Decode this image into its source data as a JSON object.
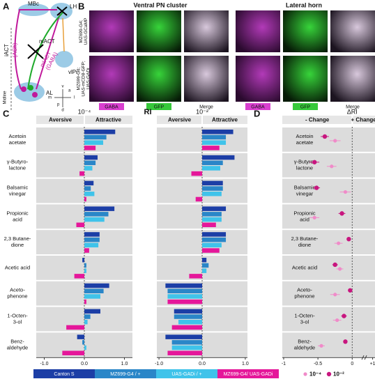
{
  "figure": {
    "panel_labels": [
      "A",
      "B",
      "C",
      "D"
    ],
    "diagram": {
      "mbc": "MBc",
      "lh": "LH",
      "iact": "iACT",
      "iact_nt": "(ACh)",
      "mact": "mACT",
      "mlact": "mlACT",
      "mlact_nt": "(GABA)",
      "vlpr": "vlPr",
      "al": "AL",
      "midline": "Midline",
      "axes": [
        "v",
        "a",
        "l",
        "m",
        "p",
        "d"
      ]
    },
    "imaging": {
      "titles": [
        "Ventral PN cluster",
        "Lateral horn"
      ],
      "rows": [
        [
          "MZ699-G4;",
          "UAS-GCaMP"
        ],
        [
          "MZ699-G4;",
          "UAS-mCD8-GFP;",
          "UAS-GADi"
        ]
      ],
      "channels": [
        "GABA",
        "GFP",
        "Merge"
      ]
    }
  },
  "chart_data": [
    {
      "type": "hbar",
      "title": "10⁻⁴",
      "left_label": "Aversive",
      "right_label": "Attractive",
      "categories": [
        [
          "Acetoin",
          "acetate"
        ],
        [
          "γ-Butyro-",
          "lactone"
        ],
        [
          "Balsamic",
          "vinegar"
        ],
        [
          "Propionic",
          "acid"
        ],
        [
          "2,3 Butane-",
          "dione"
        ],
        [
          "Acetic acid"
        ],
        [
          "Aceto-",
          "phenone"
        ],
        [
          "1-Octen-",
          "3-ol"
        ],
        [
          "Benz-",
          "aldehyde"
        ]
      ],
      "series": [
        {
          "name": "Canton S",
          "color": "#1c3ea6",
          "values": [
            0.77,
            0.33,
            0.23,
            0.75,
            0.38,
            -0.05,
            0.62,
            0.4,
            -0.18
          ]
        },
        {
          "name": "MZ699-G4 / +",
          "color": "#2a86c8",
          "values": [
            0.55,
            0.28,
            0.16,
            0.6,
            0.38,
            0.05,
            0.48,
            0.15,
            -0.05
          ]
        },
        {
          "name": "UAS-GADi / +",
          "color": "#3fc3ea",
          "values": [
            0.47,
            0.2,
            0.25,
            0.5,
            0.35,
            0.05,
            0.4,
            0.08,
            0.05
          ]
        },
        {
          "name": "MZ699-G4/ UAS-GADi",
          "color": "#e5179a",
          "values": [
            0.28,
            -0.12,
            0.05,
            -0.2,
            0.12,
            -0.25,
            0.05,
            -0.45,
            -0.55
          ]
        }
      ],
      "xlim": [
        -1.2,
        1.2
      ],
      "xticks": [
        {
          "value": -1,
          "label": "-1.0"
        },
        {
          "value": 0,
          "label": "0.0"
        },
        {
          "value": 1,
          "label": "1.0"
        }
      ]
    },
    {
      "type": "hbar",
      "title": "10⁻²",
      "ylabel": "RI",
      "left_label": "Aversive",
      "right_label": "Attractive",
      "series": [
        {
          "name": "Canton S",
          "color": "#1c3ea6",
          "values": [
            0.72,
            0.75,
            0.48,
            0.55,
            0.55,
            0.1,
            -0.85,
            -0.65,
            -0.85
          ]
        },
        {
          "name": "MZ699-G4 / +",
          "color": "#2a86c8",
          "values": [
            0.55,
            0.48,
            0.48,
            0.45,
            0.55,
            0.15,
            -0.8,
            -0.65,
            -0.7
          ]
        },
        {
          "name": "UAS-GADi / +",
          "color": "#3fc3ea",
          "values": [
            0.55,
            0.42,
            0.45,
            0.45,
            0.45,
            0.1,
            -0.8,
            -0.55,
            -0.7
          ]
        },
        {
          "name": "MZ699-G4/ UAS-GADi",
          "color": "#e5179a",
          "values": [
            0.4,
            -0.25,
            -0.15,
            0.32,
            0.4,
            -0.3,
            -0.8,
            -0.7,
            -0.8
          ]
        }
      ],
      "xlim": [
        -1.05,
        1.05
      ],
      "xticks": [
        {
          "value": -1,
          "label": "-1.0"
        },
        {
          "value": 0,
          "label": "0.0"
        },
        {
          "value": 1,
          "label": "1.0"
        }
      ]
    },
    {
      "type": "dot",
      "title": "ΔRI",
      "left_label": "- Change",
      "right_label": "+ Change",
      "categories": [
        [
          "Acetoin",
          "acetate"
        ],
        [
          "γ-Butyro-",
          "lactone"
        ],
        [
          "Balsamic",
          "vinegar"
        ],
        [
          "Propionic",
          "acid"
        ],
        [
          "2,3 Butane-",
          "dione"
        ],
        [
          "Acetic acid"
        ],
        [
          "Aceto-",
          "phenone"
        ],
        [
          "1-Octen-",
          "3-ol"
        ],
        [
          "Benz-",
          "aldehyde"
        ]
      ],
      "series": [
        {
          "name": "10⁻⁴",
          "color": "#f08bc9",
          "values": [
            -0.25,
            -0.3,
            -0.1,
            -0.55,
            -0.2,
            -0.18,
            -0.25,
            -0.22,
            -0.45
          ],
          "errors": [
            0.08,
            0.07,
            0.08,
            0.07,
            0.06,
            0.05,
            0.07,
            0.06,
            0.05
          ]
        },
        {
          "name": "10⁻²",
          "color": "#c8167f",
          "values": [
            -0.4,
            -0.55,
            -0.52,
            -0.15,
            -0.05,
            -0.25,
            -0.03,
            -0.12,
            -0.1
          ],
          "errors": [
            0.06,
            0.07,
            0.05,
            0.05,
            0.03,
            0.04,
            0.03,
            0.04,
            0.03
          ]
        }
      ],
      "xlim": [
        -1.02,
        1.02
      ],
      "xbreak": [
        0.15,
        0.95
      ],
      "xticks": [
        {
          "value": -1,
          "label": "-1"
        },
        {
          "value": -0.5,
          "label": "-0.5"
        },
        0,
        {
          "value": 1,
          "label": "+1"
        }
      ]
    }
  ]
}
